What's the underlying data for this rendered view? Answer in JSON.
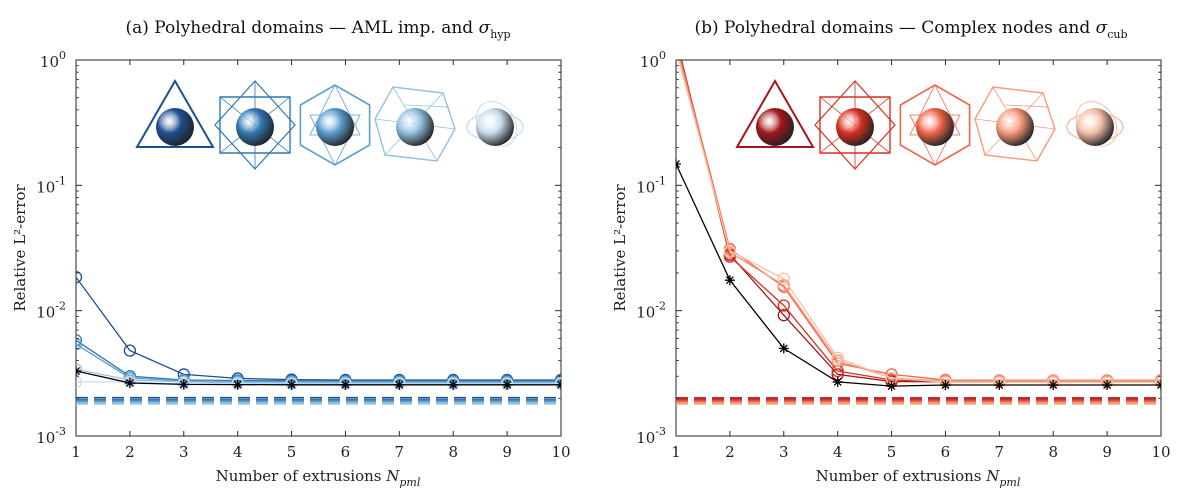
{
  "chart_data": [
    {
      "type": "line",
      "panel": "a",
      "title_prefix": "(a) Polyhedral domains — AML imp. and ",
      "title_symbol": "σ",
      "title_subscript": "hyp",
      "xlabel": "Number of extrusions ",
      "xlabel_symbol": "N",
      "xlabel_subscript": "pml",
      "ylabel": "Relative L²-error",
      "yscale": "log",
      "ylim": [
        0.001,
        1
      ],
      "xlim": [
        1,
        10
      ],
      "x": [
        1,
        2,
        3,
        4,
        5,
        6,
        7,
        8,
        9,
        10
      ],
      "xticks": [
        "1",
        "2",
        "3",
        "4",
        "5",
        "6",
        "7",
        "8",
        "9",
        "10"
      ],
      "yticks": [
        {
          "base": "10",
          "exp": "0",
          "v": 1
        },
        {
          "base": "10",
          "exp": "-1",
          "v": 0.1
        },
        {
          "base": "10",
          "exp": "-2",
          "v": 0.01
        },
        {
          "base": "10",
          "exp": "-3",
          "v": 0.001
        }
      ],
      "grid": false,
      "icons": [
        "tetrahedron-icon",
        "octahedron-icon",
        "icosahedron-icon",
        "irregular-polyhedron-icon",
        "sphere-ellipse-icon"
      ],
      "icon_colors": [
        "#1d4f91",
        "#2f78b4",
        "#5b9fcf",
        "#93c0e0",
        "#c9dcee"
      ],
      "series": [
        {
          "color": "#1d4f91",
          "marker": "circle",
          "values": [
            0.0185,
            0.0048,
            0.0031,
            0.00288,
            0.00282,
            0.0028,
            0.0028,
            0.0028,
            0.0028,
            0.0028
          ]
        },
        {
          "color": "#2f78b4",
          "marker": "circle",
          "values": [
            0.0058,
            0.003,
            0.0028,
            0.00277,
            0.00276,
            0.00275,
            0.00275,
            0.00275,
            0.00275,
            0.00275
          ]
        },
        {
          "color": "#5b9fcf",
          "marker": "circle",
          "values": [
            0.0054,
            0.0029,
            0.00275,
            0.00272,
            0.00271,
            0.0027,
            0.0027,
            0.0027,
            0.0027,
            0.0027
          ]
        },
        {
          "color": "#93c0e0",
          "marker": "circle",
          "values": [
            0.0034,
            0.0028,
            0.0027,
            0.00266,
            0.00265,
            0.00265,
            0.00265,
            0.00265,
            0.00265,
            0.00265
          ]
        },
        {
          "color": "#c9dcee",
          "marker": "circle",
          "values": [
            0.0027,
            0.0027,
            0.0026,
            0.00261,
            0.0026,
            0.0026,
            0.0026,
            0.0026,
            0.0026,
            0.0026
          ]
        },
        {
          "color": "#000000",
          "marker": "asterisk",
          "values": [
            0.0033,
            0.00265,
            0.00258,
            0.00257,
            0.00256,
            0.00256,
            0.00256,
            0.00256,
            0.00256,
            0.00256
          ]
        }
      ],
      "reference_lines": [
        {
          "color": "#1d4f91",
          "value": 0.00202
        },
        {
          "color": "#2f78b4",
          "value": 0.00194
        },
        {
          "color": "#5b9fcf",
          "value": 0.00188
        },
        {
          "color": "#93c0e0",
          "value": 0.00181
        }
      ]
    },
    {
      "type": "line",
      "panel": "b",
      "title_prefix": "(b) Polyhedral domains — Complex nodes and ",
      "title_symbol": "σ",
      "title_subscript": "cub",
      "xlabel": "Number of extrusions ",
      "xlabel_symbol": "N",
      "xlabel_subscript": "pml",
      "ylabel": "Relative L²-error",
      "yscale": "log",
      "ylim": [
        0.001,
        1
      ],
      "xlim": [
        1,
        10
      ],
      "x": [
        1,
        2,
        3,
        4,
        5,
        6,
        7,
        8,
        9,
        10
      ],
      "xticks": [
        "1",
        "2",
        "3",
        "4",
        "5",
        "6",
        "7",
        "8",
        "9",
        "10"
      ],
      "yticks": [
        {
          "base": "10",
          "exp": "0",
          "v": 1
        },
        {
          "base": "10",
          "exp": "-1",
          "v": 0.1
        },
        {
          "base": "10",
          "exp": "-2",
          "v": 0.01
        },
        {
          "base": "10",
          "exp": "-3",
          "v": 0.001
        }
      ],
      "grid": false,
      "icons": [
        "tetrahedron-icon",
        "octahedron-icon",
        "icosahedron-icon",
        "irregular-polyhedron-icon",
        "sphere-ellipse-icon"
      ],
      "icon_colors": [
        "#a4161a",
        "#d7301f",
        "#ef6548",
        "#f79a7a",
        "#f5c1a8"
      ],
      "series": [
        {
          "color": "#a4161a",
          "marker": "circle",
          "values": [
            1.5,
            0.028,
            0.0092,
            0.0031,
            0.00272,
            0.0027,
            0.0027,
            0.0027,
            0.0027,
            0.0027
          ]
        },
        {
          "color": "#d7301f",
          "marker": "circle",
          "values": [
            1.45,
            0.027,
            0.011,
            0.0033,
            0.0028,
            0.00272,
            0.00272,
            0.00272,
            0.00272,
            0.00272
          ]
        },
        {
          "color": "#ef6548",
          "marker": "circle",
          "values": [
            1.4,
            0.031,
            0.0155,
            0.0038,
            0.0031,
            0.0028,
            0.00278,
            0.00278,
            0.00278,
            0.00278
          ]
        },
        {
          "color": "#f79a7a",
          "marker": "circle",
          "values": [
            1.3,
            0.029,
            0.016,
            0.004,
            0.0029,
            0.00275,
            0.00275,
            0.00275,
            0.00275,
            0.00275
          ]
        },
        {
          "color": "#f5c1a8",
          "marker": "circle",
          "values": [
            1.2,
            0.03,
            0.018,
            0.0042,
            0.0029,
            0.00268,
            0.00268,
            0.00268,
            0.00268,
            0.00268
          ]
        },
        {
          "color": "#000000",
          "marker": "asterisk",
          "values": [
            0.148,
            0.0175,
            0.005,
            0.0027,
            0.0025,
            0.00255,
            0.00255,
            0.00255,
            0.00255,
            0.00255
          ]
        }
      ],
      "reference_lines": [
        {
          "color": "#a4161a",
          "value": 0.00201
        },
        {
          "color": "#d7301f",
          "value": 0.00194
        },
        {
          "color": "#ef6548",
          "value": 0.00188
        },
        {
          "color": "#f79a7a",
          "value": 0.00181
        }
      ]
    }
  ]
}
